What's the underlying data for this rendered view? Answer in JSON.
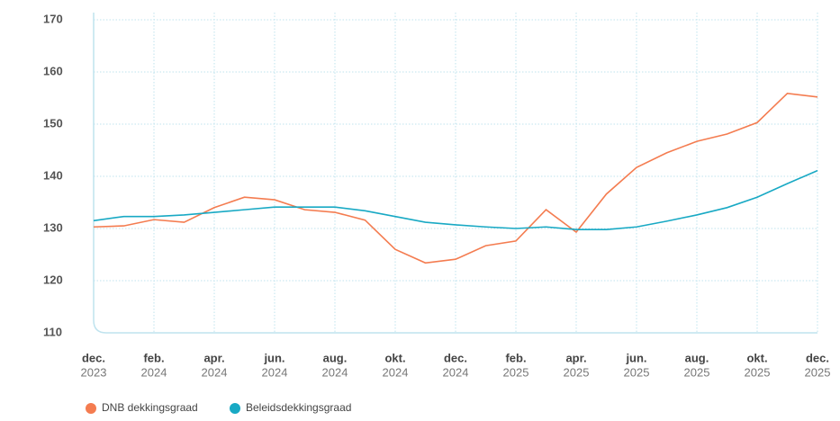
{
  "chart_data": {
    "type": "line",
    "categories": [
      [
        "dec.",
        "2023"
      ],
      null,
      [
        "feb.",
        "2024"
      ],
      null,
      [
        "apr.",
        "2024"
      ],
      null,
      [
        "jun.",
        "2024"
      ],
      null,
      [
        "aug.",
        "2024"
      ],
      null,
      [
        "okt.",
        "2024"
      ],
      null,
      [
        "dec.",
        "2024"
      ],
      null,
      [
        "feb.",
        "2025"
      ],
      null,
      [
        "apr.",
        "2025"
      ],
      null,
      [
        "jun.",
        "2025"
      ],
      null,
      [
        "aug.",
        "2025"
      ],
      null,
      [
        "okt.",
        "2025"
      ],
      null,
      [
        "dec.",
        "2025"
      ]
    ],
    "series": [
      {
        "name": "DNB dekkingsgraad",
        "color": "#f47c50",
        "values": [
          130.3,
          130.5,
          131.7,
          131.2,
          134.0,
          136.0,
          135.5,
          133.6,
          133.1,
          131.6,
          126.0,
          123.4,
          124.1,
          126.7,
          127.6,
          133.6,
          129.3,
          136.6,
          141.7,
          144.5,
          146.7,
          148.1,
          150.3,
          155.9,
          155.2
        ]
      },
      {
        "name": "Beleidsdekkingsgraad",
        "color": "#18a9c4",
        "values": [
          131.5,
          132.3,
          132.3,
          132.6,
          133.1,
          133.6,
          134.1,
          134.1,
          134.1,
          133.4,
          132.3,
          131.2,
          130.7,
          130.3,
          130.0,
          130.3,
          129.8,
          129.8,
          130.3,
          131.4,
          132.6,
          134.0,
          136.0,
          138.6,
          141.1
        ]
      }
    ],
    "ylim": [
      110,
      170
    ],
    "yticks": [
      110,
      120,
      130,
      140,
      150,
      160,
      170
    ],
    "grid": true
  }
}
